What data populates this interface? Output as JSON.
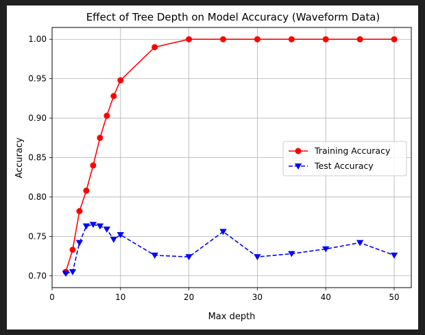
{
  "chart_data": {
    "type": "line",
    "title": "Effect of Tree Depth on Model Accuracy (Waveform Data)",
    "xlabel": "Max depth",
    "ylabel": "Accuracy",
    "xlim": [
      0,
      52.5
    ],
    "ylim": [
      0.685,
      1.015
    ],
    "xticks": [
      0,
      10,
      20,
      30,
      40,
      50
    ],
    "yticks": [
      0.7,
      0.75,
      0.8,
      0.85,
      0.9,
      0.95,
      1.0
    ],
    "grid": true,
    "legend_position": "center-right",
    "x": [
      2,
      3,
      4,
      5,
      6,
      7,
      8,
      9,
      10,
      15,
      20,
      25,
      30,
      35,
      40,
      45,
      50
    ],
    "series": [
      {
        "name": "Training Accuracy",
        "color": "#ff0000",
        "linestyle": "solid",
        "marker": "circle",
        "values": [
          0.705,
          0.733,
          0.782,
          0.808,
          0.84,
          0.875,
          0.903,
          0.928,
          0.948,
          0.99,
          1.0,
          1.0,
          1.0,
          1.0,
          1.0,
          1.0,
          1.0
        ]
      },
      {
        "name": "Test Accuracy",
        "color": "#0000ff",
        "linestyle": "dashed",
        "marker": "triangle-down",
        "values": [
          0.703,
          0.705,
          0.742,
          0.763,
          0.765,
          0.763,
          0.759,
          0.746,
          0.752,
          0.726,
          0.724,
          0.756,
          0.724,
          0.728,
          0.734,
          0.742,
          0.726
        ]
      }
    ]
  }
}
